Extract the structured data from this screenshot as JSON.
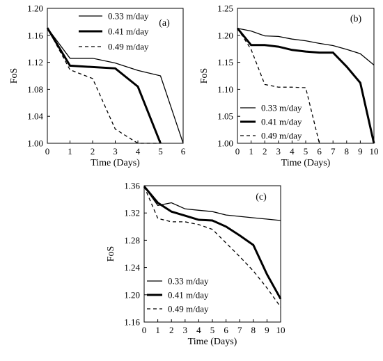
{
  "chart_data": [
    {
      "type": "line",
      "panel_label": "(a)",
      "xlabel": "Time (Days)",
      "ylabel": "FoS",
      "xlim": [
        0,
        6
      ],
      "ylim": [
        1.0,
        1.2
      ],
      "xticks": [
        "0",
        "1",
        "2",
        "3",
        "4",
        "5",
        "6"
      ],
      "yticks": [
        "1.00",
        "1.04",
        "1.08",
        "1.12",
        "1.16",
        "1.20"
      ],
      "legend_position": "top-right",
      "series": [
        {
          "name": "0.33 m/day",
          "style": "thin",
          "x": [
            0,
            1,
            2,
            3,
            4,
            5,
            6
          ],
          "y": [
            1.171,
            1.126,
            1.126,
            1.119,
            1.108,
            1.1,
            1.0
          ]
        },
        {
          "name": "0.41 m/day",
          "style": "thick",
          "x": [
            0,
            1,
            2,
            3,
            4,
            5
          ],
          "y": [
            1.171,
            1.115,
            1.113,
            1.111,
            1.084,
            1.0
          ]
        },
        {
          "name": "0.49 m/day",
          "style": "dashed",
          "x": [
            0,
            1,
            2,
            3,
            4,
            5
          ],
          "y": [
            1.171,
            1.109,
            1.096,
            1.021,
            1.0,
            1.0
          ]
        }
      ]
    },
    {
      "type": "line",
      "panel_label": "(b)",
      "xlabel": "Time (Days)",
      "ylabel": "FoS",
      "xlim": [
        0,
        10
      ],
      "ylim": [
        1.0,
        1.25
      ],
      "xticks": [
        "0",
        "1",
        "2",
        "3",
        "4",
        "5",
        "6",
        "7",
        "8",
        "9",
        "10"
      ],
      "yticks": [
        "1.00",
        "1.05",
        "1.10",
        "1.15",
        "1.20",
        "1.25"
      ],
      "legend_position": "bottom-left",
      "series": [
        {
          "name": "0.33 m/day",
          "style": "thin",
          "x": [
            0,
            1,
            2,
            3,
            4,
            5,
            6,
            7,
            8,
            9,
            10
          ],
          "y": [
            1.213,
            1.208,
            1.199,
            1.198,
            1.193,
            1.19,
            1.185,
            1.181,
            1.174,
            1.166,
            1.145
          ]
        },
        {
          "name": "0.41 m/day",
          "style": "thick",
          "x": [
            0,
            1,
            2,
            3,
            4,
            5,
            6,
            7,
            8,
            9,
            10
          ],
          "y": [
            1.213,
            1.182,
            1.182,
            1.179,
            1.173,
            1.17,
            1.168,
            1.168,
            1.142,
            1.112,
            1.0
          ]
        },
        {
          "name": "0.49 m/day",
          "style": "dashed",
          "x": [
            0,
            1,
            2,
            3,
            4,
            5,
            6
          ],
          "y": [
            1.213,
            1.174,
            1.109,
            1.104,
            1.104,
            1.103,
            1.0
          ]
        }
      ]
    },
    {
      "type": "line",
      "panel_label": "(c)",
      "xlabel": "Time (Days)",
      "ylabel": "FoS",
      "xlim": [
        0,
        10
      ],
      "ylim": [
        1.16,
        1.36
      ],
      "xticks": [
        "0",
        "1",
        "2",
        "3",
        "4",
        "5",
        "6",
        "7",
        "8",
        "9",
        "10"
      ],
      "yticks": [
        "1.16",
        "1.20",
        "1.24",
        "1.28",
        "1.32",
        "1.36"
      ],
      "legend_position": "bottom-left",
      "series": [
        {
          "name": "0.33 m/day",
          "style": "thin",
          "x": [
            0,
            1,
            2,
            3,
            4,
            5,
            6,
            7,
            8,
            9,
            10
          ],
          "y": [
            1.359,
            1.331,
            1.335,
            1.326,
            1.324,
            1.322,
            1.317,
            1.315,
            1.313,
            1.311,
            1.309
          ]
        },
        {
          "name": "0.41 m/day",
          "style": "thick",
          "x": [
            0,
            1,
            2,
            3,
            4,
            5,
            6,
            7,
            8,
            9,
            10
          ],
          "y": [
            1.359,
            1.335,
            1.322,
            1.316,
            1.31,
            1.309,
            1.3,
            1.287,
            1.273,
            1.23,
            1.194
          ]
        },
        {
          "name": "0.49 m/day",
          "style": "dashed",
          "x": [
            0,
            1,
            2,
            3,
            4,
            5,
            6,
            7,
            8,
            9,
            10
          ],
          "y": [
            1.359,
            1.312,
            1.307,
            1.307,
            1.303,
            1.296,
            1.276,
            1.256,
            1.235,
            1.21,
            1.182
          ]
        }
      ]
    }
  ]
}
